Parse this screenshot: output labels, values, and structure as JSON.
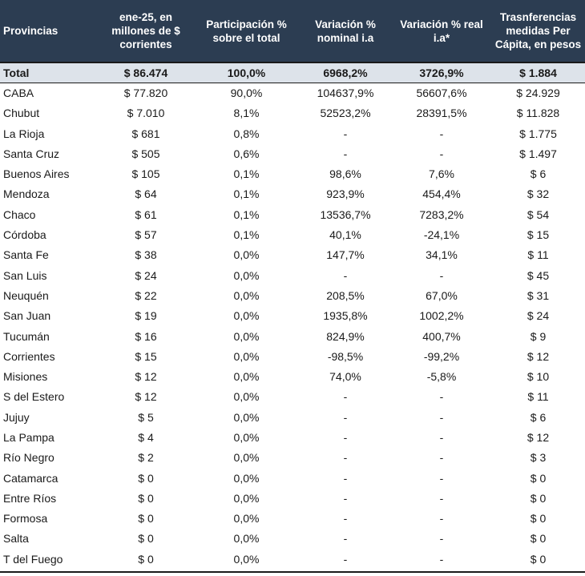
{
  "headers": [
    "Provincias",
    "ene-25, en millones de $ corrientes",
    "Participación % sobre el total",
    "Variación % nominal i.a",
    "Variación % real i.a*",
    "Trasnferencias medidas Per Cápita, en pesos"
  ],
  "total": [
    "Total",
    "$ 86.474",
    "100,0%",
    "6968,2%",
    "3726,9%",
    "$ 1.884"
  ],
  "rows": [
    [
      "CABA",
      "$ 77.820",
      "90,0%",
      "104637,9%",
      "56607,6%",
      "$ 24.929"
    ],
    [
      "Chubut",
      "$ 7.010",
      "8,1%",
      "52523,2%",
      "28391,5%",
      "$ 11.828"
    ],
    [
      "La Rioja",
      "$ 681",
      "0,8%",
      "-",
      "-",
      "$ 1.775"
    ],
    [
      "Santa Cruz",
      "$ 505",
      "0,6%",
      "-",
      "-",
      "$ 1.497"
    ],
    [
      "Buenos Aires",
      "$ 105",
      "0,1%",
      "98,6%",
      "7,6%",
      "$ 6"
    ],
    [
      "Mendoza",
      "$ 64",
      "0,1%",
      "923,9%",
      "454,4%",
      "$ 32"
    ],
    [
      "Chaco",
      "$ 61",
      "0,1%",
      "13536,7%",
      "7283,2%",
      "$ 54"
    ],
    [
      "Córdoba",
      "$ 57",
      "0,1%",
      "40,1%",
      "-24,1%",
      "$ 15"
    ],
    [
      "Santa Fe",
      "$ 38",
      "0,0%",
      "147,7%",
      "34,1%",
      "$ 11"
    ],
    [
      "San Luis",
      "$ 24",
      "0,0%",
      "-",
      "-",
      "$ 45"
    ],
    [
      "Neuquén",
      "$ 22",
      "0,0%",
      "208,5%",
      "67,0%",
      "$ 31"
    ],
    [
      "San Juan",
      "$ 19",
      "0,0%",
      "1935,8%",
      "1002,2%",
      "$ 24"
    ],
    [
      "Tucumán",
      "$ 16",
      "0,0%",
      "824,9%",
      "400,7%",
      "$ 9"
    ],
    [
      "Corrientes",
      "$ 15",
      "0,0%",
      "-98,5%",
      "-99,2%",
      "$ 12"
    ],
    [
      "Misiones",
      "$ 12",
      "0,0%",
      "74,0%",
      "-5,8%",
      "$ 10"
    ],
    [
      "S del Estero",
      "$ 12",
      "0,0%",
      "-",
      "-",
      "$ 11"
    ],
    [
      "Jujuy",
      "$ 5",
      "0,0%",
      "-",
      "-",
      "$ 6"
    ],
    [
      "La Pampa",
      "$ 4",
      "0,0%",
      "-",
      "-",
      "$ 12"
    ],
    [
      "Río Negro",
      "$ 2",
      "0,0%",
      "-",
      "-",
      "$ 3"
    ],
    [
      "Catamarca",
      "$ 0",
      "0,0%",
      "-",
      "-",
      "$ 0"
    ],
    [
      "Entre Ríos",
      "$ 0",
      "0,0%",
      "-",
      "-",
      "$ 0"
    ],
    [
      "Formosa",
      "$ 0",
      "0,0%",
      "-",
      "-",
      "$ 0"
    ],
    [
      "Salta",
      "$ 0",
      "0,0%",
      "-",
      "-",
      "$ 0"
    ],
    [
      "T del Fuego",
      "$ 0",
      "0,0%",
      "-",
      "-",
      "$ 0"
    ]
  ]
}
